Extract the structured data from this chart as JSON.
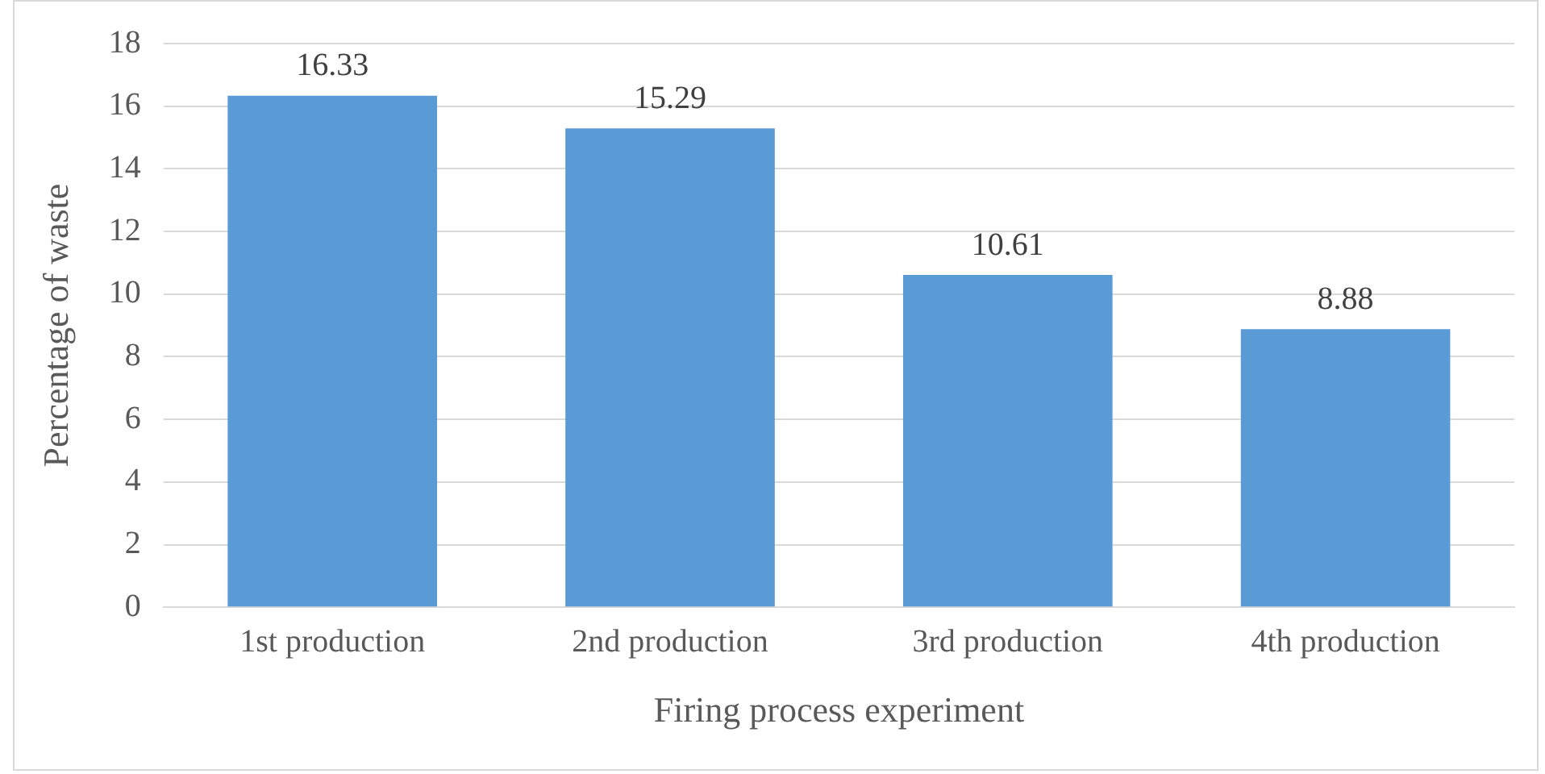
{
  "chart_data": {
    "type": "bar",
    "xlabel": "Firing process experiment",
    "ylabel": "Percentage of waste",
    "categories": [
      "1st production",
      "2nd production",
      "3rd production",
      "4th production"
    ],
    "values": [
      16.33,
      15.29,
      10.61,
      8.88
    ],
    "color": "#5b9bd5",
    "ylim": [
      0,
      18
    ],
    "yticks": [
      0,
      2,
      4,
      6,
      8,
      10,
      12,
      14,
      16,
      18
    ],
    "grid": "y",
    "data_labels": true,
    "legend": false
  }
}
